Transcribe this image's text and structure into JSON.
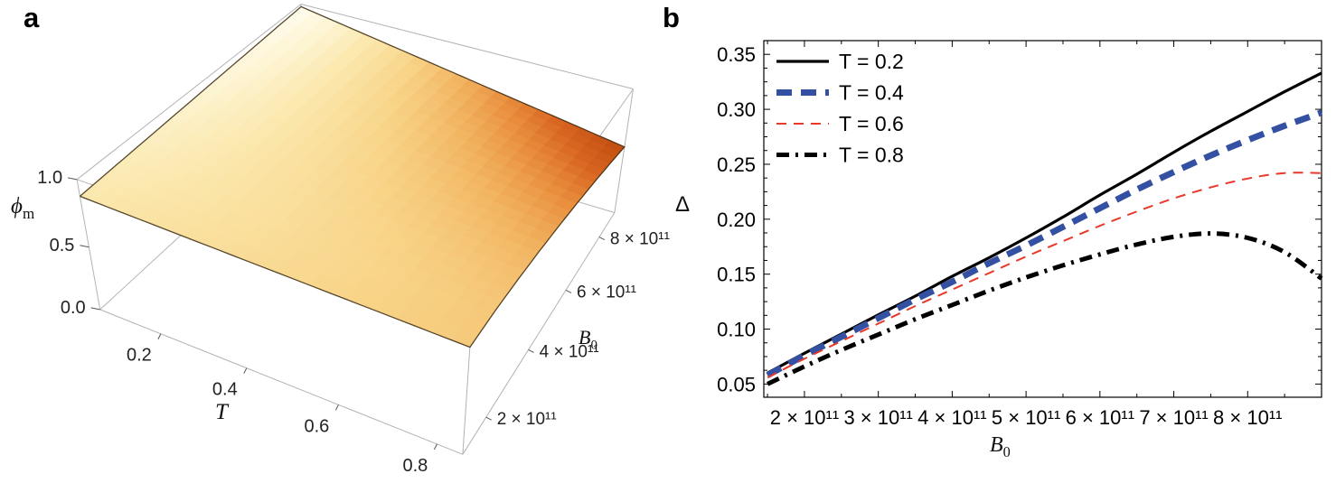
{
  "page": {
    "background": "#ffffff"
  },
  "chart_data": [
    {
      "id": "a",
      "panel_label": "a",
      "type": "surface3d",
      "xlabel": "T",
      "ylabel_base": "B",
      "ylabel_sub": "0",
      "zlabel_base": "ϕ",
      "zlabel_sub": "m",
      "x_range": [
        0.05,
        0.85
      ],
      "y_range_1e11": [
        1,
        9
      ],
      "z_range": [
        0,
        1
      ],
      "x_ticks": [
        {
          "v": 0.2,
          "label": "0.2"
        },
        {
          "v": 0.4,
          "label": "0.4"
        },
        {
          "v": 0.6,
          "label": "0.6"
        },
        {
          "v": 0.8,
          "label": "0.8"
        }
      ],
      "y_ticks": [
        {
          "v": 2,
          "label": "2 × 10¹¹"
        },
        {
          "v": 4,
          "label": "4 × 10¹¹"
        },
        {
          "v": 6,
          "label": "6 × 10¹¹"
        },
        {
          "v": 8,
          "label": "8 × 10¹¹"
        }
      ],
      "z_ticks": [
        {
          "v": 0.0,
          "label": "0.0"
        },
        {
          "v": 0.5,
          "label": "0.5"
        },
        {
          "v": 1.0,
          "label": "1.0"
        }
      ],
      "grid_T": [
        0.05,
        0.15,
        0.25,
        0.35,
        0.45,
        0.55,
        0.65,
        0.75,
        0.85
      ],
      "grid_B_1e11": [
        1,
        2,
        3,
        4,
        5,
        6,
        7,
        8,
        9
      ],
      "phi_values": [
        [
          0.88,
          0.893,
          0.905,
          0.918,
          0.93,
          0.943,
          0.955,
          0.968,
          0.98
        ],
        [
          0.87,
          0.881,
          0.89,
          0.898,
          0.905,
          0.911,
          0.917,
          0.922,
          0.926
        ],
        [
          0.86,
          0.869,
          0.874,
          0.877,
          0.879,
          0.879,
          0.878,
          0.876,
          0.873
        ],
        [
          0.85,
          0.857,
          0.859,
          0.857,
          0.854,
          0.848,
          0.84,
          0.83,
          0.819
        ],
        [
          0.84,
          0.845,
          0.843,
          0.837,
          0.828,
          0.816,
          0.801,
          0.784,
          0.765
        ],
        [
          0.83,
          0.833,
          0.828,
          0.817,
          0.803,
          0.784,
          0.763,
          0.739,
          0.711
        ],
        [
          0.82,
          0.821,
          0.812,
          0.797,
          0.777,
          0.753,
          0.725,
          0.693,
          0.658
        ],
        [
          0.81,
          0.809,
          0.797,
          0.777,
          0.752,
          0.721,
          0.686,
          0.647,
          0.604
        ],
        [
          0.8,
          0.797,
          0.781,
          0.757,
          0.726,
          0.69,
          0.648,
          0.601,
          0.55
        ]
      ],
      "color_scale_range": [
        0.55,
        0.98
      ],
      "colormap": [
        [
          0.0,
          "#bf4a0e"
        ],
        [
          0.21,
          "#d96722"
        ],
        [
          0.35,
          "#e98f3e"
        ],
        [
          0.49,
          "#f2b562"
        ],
        [
          0.63,
          "#f8d488"
        ],
        [
          0.77,
          "#fbe8ae"
        ],
        [
          0.88,
          "#fdf4d2"
        ],
        [
          1.0,
          "#fffdf1"
        ]
      ],
      "box_color": "#b3b3b3",
      "surface_edge_color": "#3a2a12"
    },
    {
      "id": "b",
      "panel_label": "b",
      "type": "line",
      "xlabel_base": "B",
      "xlabel_sub": "0",
      "ylabel": "Δ",
      "x_range_1e11": [
        1.45,
        9.0
      ],
      "y_range": [
        0.038,
        0.3625
      ],
      "x_ticks": [
        {
          "v": 2,
          "label": "2 × 10¹¹"
        },
        {
          "v": 3,
          "label": "3 × 10¹¹"
        },
        {
          "v": 4,
          "label": "4 × 10¹¹"
        },
        {
          "v": 5,
          "label": "5 × 10¹¹"
        },
        {
          "v": 6,
          "label": "6 × 10¹¹"
        },
        {
          "v": 7,
          "label": "7 × 10¹¹"
        },
        {
          "v": 8,
          "label": "8 × 10¹¹"
        }
      ],
      "y_ticks": [
        {
          "v": 0.05,
          "label": "0.05"
        },
        {
          "v": 0.1,
          "label": "0.10"
        },
        {
          "v": 0.15,
          "label": "0.15"
        },
        {
          "v": 0.2,
          "label": "0.20"
        },
        {
          "v": 0.25,
          "label": "0.25"
        },
        {
          "v": 0.3,
          "label": "0.30"
        },
        {
          "v": 0.35,
          "label": "0.35"
        }
      ],
      "legend_position": "top-left",
      "series": [
        {
          "name": "T = 0.2",
          "color": "#000000",
          "width": 3.2,
          "dash": "",
          "x": [
            1.5,
            2,
            2.5,
            3,
            3.5,
            4,
            4.5,
            5,
            5.5,
            6,
            6.5,
            7,
            7.5,
            8,
            8.5,
            9
          ],
          "y": [
            0.06,
            0.078,
            0.0955,
            0.113,
            0.13,
            0.148,
            0.165,
            0.183,
            0.202,
            0.222,
            0.241,
            0.261,
            0.28,
            0.298,
            0.316,
            0.333
          ]
        },
        {
          "name": "T = 0.4",
          "color": "#3450a2",
          "width": 7,
          "dash": "17 10",
          "x": [
            1.5,
            2,
            2.5,
            3,
            3.5,
            4,
            4.5,
            5,
            5.5,
            6,
            6.5,
            7,
            7.5,
            8,
            8.5,
            9
          ],
          "y": [
            0.058,
            0.076,
            0.093,
            0.11,
            0.127,
            0.143,
            0.16,
            0.176,
            0.193,
            0.21,
            0.227,
            0.243,
            0.258,
            0.272,
            0.285,
            0.297
          ]
        },
        {
          "name": "T = 0.6",
          "color": "#e8392b",
          "width": 2,
          "dash": "11 8",
          "x": [
            1.5,
            2,
            2.5,
            3,
            3.5,
            4,
            4.5,
            5,
            5.5,
            6,
            6.5,
            7,
            7.5,
            8,
            8.5,
            9
          ],
          "y": [
            0.056,
            0.073,
            0.089,
            0.105,
            0.121,
            0.136,
            0.151,
            0.166,
            0.18,
            0.194,
            0.207,
            0.219,
            0.229,
            0.237,
            0.242,
            0.242
          ]
        },
        {
          "name": "T = 0.8",
          "color": "#000000",
          "width": 5,
          "dash": "14 7 3 7",
          "x": [
            1.5,
            2,
            2.5,
            3,
            3.5,
            4,
            4.5,
            5,
            5.5,
            6,
            6.5,
            7,
            7.5,
            8,
            8.5,
            9
          ],
          "y": [
            0.05,
            0.066,
            0.081,
            0.095,
            0.109,
            0.122,
            0.135,
            0.147,
            0.158,
            0.168,
            0.177,
            0.184,
            0.187,
            0.183,
            0.17,
            0.146
          ]
        }
      ]
    }
  ]
}
